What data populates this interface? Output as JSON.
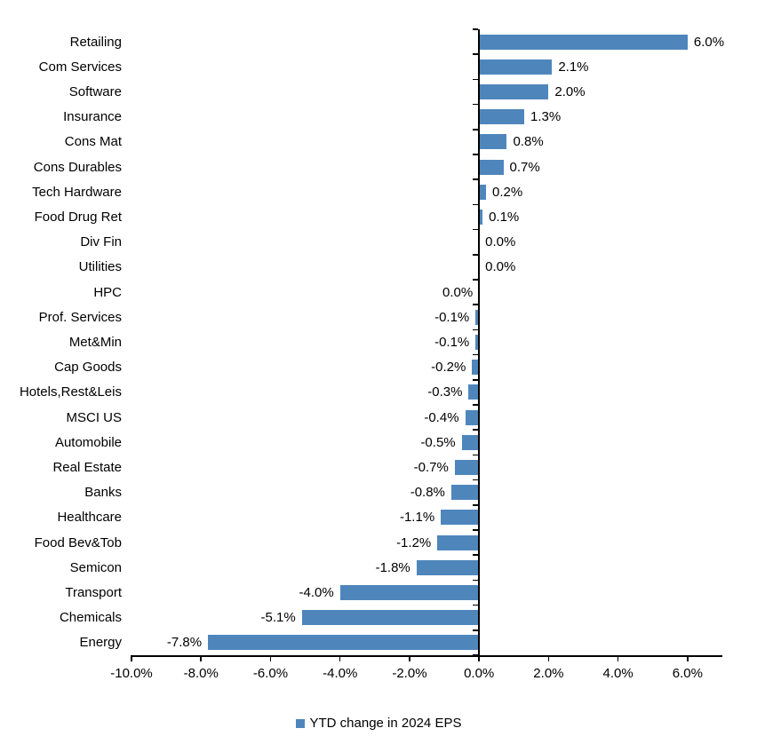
{
  "chart_data": {
    "type": "bar",
    "orientation": "horizontal",
    "title": "",
    "legend": "YTD change in 2024 EPS",
    "legend_position": "bottom-center",
    "bar_color": "#4E86BC",
    "axis_color": "#000000",
    "xlim": [
      -10,
      7
    ],
    "grid": "off",
    "categories": [
      "Retailing",
      "Com Services",
      "Software",
      "Insurance",
      "Cons Mat",
      "Cons Durables",
      "Tech Hardware",
      "Food Drug Ret",
      "Div Fin",
      "Utilities",
      "HPC",
      "Prof. Services",
      "Met&Min",
      "Cap Goods",
      "Hotels,Rest&Leis",
      "MSCI US",
      "Automobile",
      "Real Estate",
      "Banks",
      "Healthcare",
      "Food Bev&Tob",
      "Semicon",
      "Transport",
      "Chemicals",
      "Energy"
    ],
    "values": [
      6.0,
      2.1,
      2.0,
      1.3,
      0.8,
      0.7,
      0.2,
      0.1,
      0.0,
      0.0,
      0.0,
      -0.1,
      -0.1,
      -0.2,
      -0.3,
      -0.4,
      -0.5,
      -0.7,
      -0.8,
      -1.1,
      -1.2,
      -1.8,
      -4.0,
      -5.1,
      -7.8
    ],
    "value_labels": [
      "6.0%",
      "2.1%",
      "2.0%",
      "1.3%",
      "0.8%",
      "0.7%",
      "0.2%",
      "0.1%",
      "0.0%",
      "0.0%",
      "0.0%",
      "-0.1%",
      "-0.1%",
      "-0.2%",
      "-0.3%",
      "-0.4%",
      "-0.5%",
      "-0.7%",
      "-0.8%",
      "-1.1%",
      "-1.2%",
      "-1.8%",
      "-4.0%",
      "-5.1%",
      "-7.8%"
    ],
    "label_sides": [
      "right",
      "right",
      "right",
      "right",
      "right",
      "right",
      "right",
      "right",
      "right",
      "right",
      "left",
      "left",
      "left",
      "left",
      "left",
      "left",
      "left",
      "left",
      "left",
      "left",
      "left",
      "left",
      "left",
      "left",
      "left"
    ],
    "x_ticks": [
      {
        "value": -10,
        "label": "-10.0%"
      },
      {
        "value": -8,
        "label": "-8.0%"
      },
      {
        "value": -6,
        "label": "-6.0%"
      },
      {
        "value": -4,
        "label": "-4.0%"
      },
      {
        "value": -2,
        "label": "-2.0%"
      },
      {
        "value": 0,
        "label": "0.0%"
      },
      {
        "value": 2,
        "label": "2.0%"
      },
      {
        "value": 4,
        "label": "4.0%"
      },
      {
        "value": 6,
        "label": "6.0%"
      }
    ]
  }
}
